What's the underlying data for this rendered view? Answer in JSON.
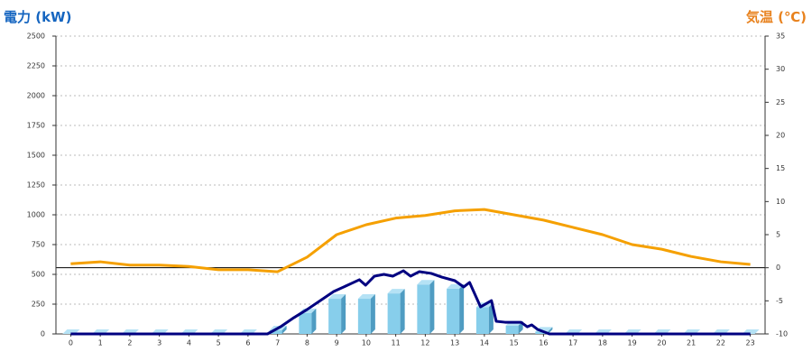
{
  "chart_data": {
    "type": "bar",
    "y_label": "電力 (kW)",
    "y2_label": "気温 (℃)",
    "categories": [
      0,
      1,
      2,
      3,
      4,
      5,
      6,
      7,
      8,
      9,
      10,
      11,
      12,
      13,
      14,
      15,
      16,
      17,
      18,
      19,
      20,
      21,
      22,
      23
    ],
    "xlim": [
      -0.5,
      23.5
    ],
    "ylim": [
      0,
      2500
    ],
    "yticks": [
      0,
      250,
      500,
      750,
      1000,
      1250,
      1500,
      1750,
      2000,
      2250,
      2500
    ],
    "y2lim": [
      -10,
      35
    ],
    "y2ticks": [
      -10,
      -5,
      0,
      5,
      10,
      15,
      20,
      25,
      30,
      35
    ],
    "grid": true,
    "series": [
      {
        "type": "bar",
        "color": "#87ceeb",
        "values": [
          0,
          0,
          0,
          0,
          0,
          0,
          0,
          30,
          175,
          295,
          295,
          340,
          415,
          380,
          225,
          70,
          20,
          0,
          0,
          0,
          0,
          0,
          0,
          0
        ]
      },
      {
        "type": "line",
        "color": "#000080",
        "x": [
          0,
          6.66,
          7.1,
          7.55,
          8.0,
          8.45,
          8.9,
          9.37,
          9.77,
          9.98,
          10.28,
          10.6,
          10.9,
          11.26,
          11.5,
          11.8,
          12.2,
          12.56,
          13.0,
          13.3,
          13.5,
          13.87,
          14.24,
          14.4,
          14.7,
          15.24,
          15.45,
          15.6,
          15.8,
          16.2,
          23
        ],
        "values": [
          0,
          0,
          60,
          136,
          205,
          280,
          356,
          409,
          455,
          409,
          485,
          500,
          485,
          530,
          485,
          523,
          508,
          477,
          447,
          394,
          432,
          227,
          280,
          106,
          98,
          98,
          60,
          76,
          38,
          0,
          0
        ]
      },
      {
        "type": "line",
        "axis": "y2",
        "color": "#f5a000",
        "values": [
          0.6,
          0.9,
          0.4,
          0.4,
          0.2,
          -0.3,
          -0.3,
          -0.6,
          1.6,
          5.0,
          6.5,
          7.5,
          7.9,
          8.6,
          8.8,
          8.0,
          7.2,
          6.1,
          5.0,
          3.5,
          2.8,
          1.7,
          0.9,
          0.5
        ]
      }
    ]
  }
}
